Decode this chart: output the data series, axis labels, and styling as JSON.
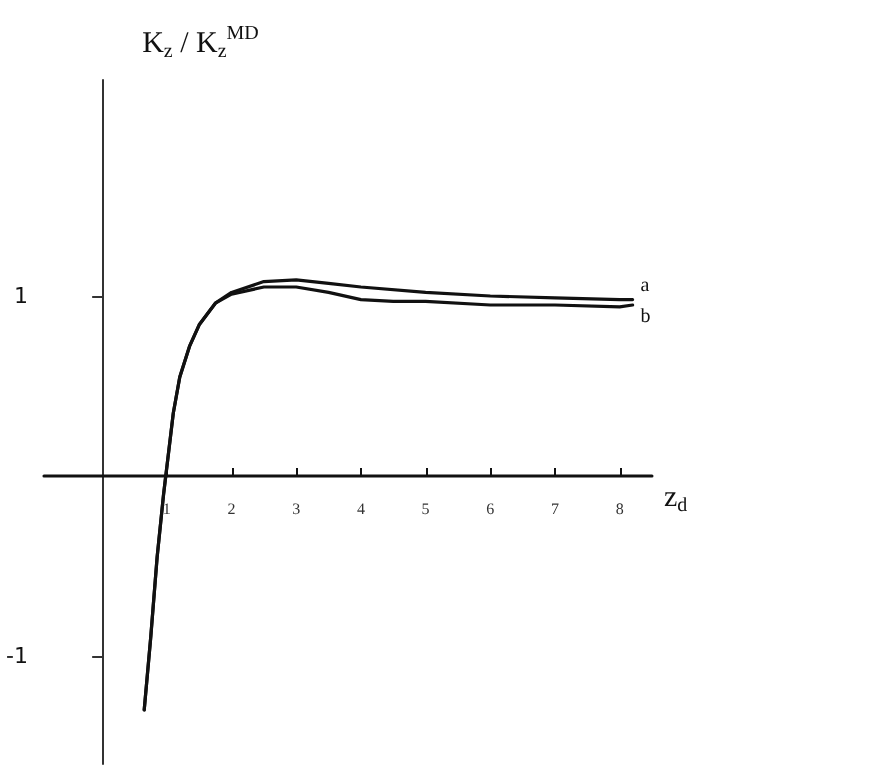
{
  "chart_data": {
    "type": "line",
    "ylabel": "K$_{z}$ / K$_{z}$$^{MD}$",
    "xlabel": "z$_{d}$",
    "xlim": [
      -0.9,
      8.5
    ],
    "ylim": [
      -1.6,
      2.2
    ],
    "xticks": [
      1,
      2,
      3,
      4,
      5,
      6,
      7,
      8
    ],
    "yticks": [
      -1,
      1
    ],
    "grid": false,
    "legend": false,
    "marker": "none",
    "line_style": "solid",
    "series": [
      {
        "name": "a",
        "color": "#111111",
        "x": [
          0.65,
          0.75,
          0.85,
          0.95,
          1.0,
          1.1,
          1.2,
          1.35,
          1.5,
          1.75,
          2,
          2.5,
          3,
          3.5,
          4,
          5,
          6,
          7,
          8,
          8.2
        ],
        "values": [
          -1.3,
          -0.9,
          -0.45,
          -0.1,
          0.05,
          0.35,
          0.55,
          0.72,
          0.84,
          0.96,
          1.02,
          1.08,
          1.09,
          1.07,
          1.05,
          1.02,
          1.0,
          0.99,
          0.98,
          0.98
        ]
      },
      {
        "name": "b",
        "color": "#111111",
        "x": [
          0.65,
          0.75,
          0.85,
          0.95,
          1.0,
          1.1,
          1.2,
          1.35,
          1.5,
          1.75,
          2,
          2.5,
          3,
          3.5,
          4,
          4.5,
          5,
          6,
          7,
          8,
          8.2
        ],
        "values": [
          -1.3,
          -0.9,
          -0.45,
          -0.1,
          0.05,
          0.35,
          0.55,
          0.72,
          0.84,
          0.96,
          1.01,
          1.05,
          1.05,
          1.02,
          0.98,
          0.97,
          0.97,
          0.95,
          0.95,
          0.94,
          0.95
        ]
      }
    ]
  }
}
